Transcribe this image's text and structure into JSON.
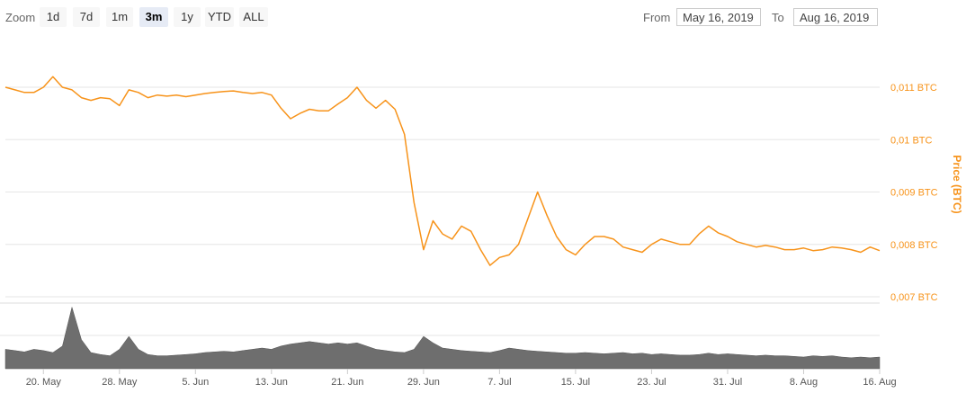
{
  "toolbar": {
    "zoom_label": "Zoom",
    "zoom_buttons": [
      {
        "label": "1d",
        "active": false
      },
      {
        "label": "7d",
        "active": false
      },
      {
        "label": "1m",
        "active": false
      },
      {
        "label": "3m",
        "active": true
      },
      {
        "label": "1y",
        "active": false
      },
      {
        "label": "YTD",
        "active": false
      },
      {
        "label": "ALL",
        "active": false
      }
    ],
    "from_label": "From",
    "from_value": "May 16, 2019",
    "to_label": "To",
    "to_value": "Aug 16, 2019"
  },
  "colors": {
    "price_line": "#f7931a",
    "volume_fill": "#6e6e6e",
    "grid": "#e6e6e6"
  },
  "chart_data": [
    {
      "type": "line",
      "ylabel": "Price (BTC)",
      "y_ticks": [
        "0,007 BTC",
        "0,008 BTC",
        "0,009 BTC",
        "0,01 BTC",
        "0,011 BTC"
      ],
      "ylim": [
        0.007,
        0.011
      ],
      "x_ticks": [
        "20. May",
        "28. May",
        "5. Jun",
        "13. Jun",
        "21. Jun",
        "29. Jun",
        "7. Jul",
        "15. Jul",
        "23. Jul",
        "31. Jul",
        "8. Aug",
        "16. Aug"
      ],
      "xlim": [
        "2019-05-16",
        "2019-08-16"
      ],
      "grid": true,
      "series": [
        {
          "x": [
            "2019-05-16",
            "2019-05-17",
            "2019-05-18",
            "2019-05-19",
            "2019-05-20",
            "2019-05-21",
            "2019-05-22",
            "2019-05-23",
            "2019-05-24",
            "2019-05-25",
            "2019-05-26",
            "2019-05-27",
            "2019-05-28",
            "2019-05-29",
            "2019-05-30",
            "2019-05-31",
            "2019-06-01",
            "2019-06-02",
            "2019-06-03",
            "2019-06-04",
            "2019-06-05",
            "2019-06-06",
            "2019-06-07",
            "2019-06-08",
            "2019-06-09",
            "2019-06-10",
            "2019-06-11",
            "2019-06-12",
            "2019-06-13",
            "2019-06-14",
            "2019-06-15",
            "2019-06-16",
            "2019-06-17",
            "2019-06-18",
            "2019-06-19",
            "2019-06-20",
            "2019-06-21",
            "2019-06-22",
            "2019-06-23",
            "2019-06-24",
            "2019-06-25",
            "2019-06-26",
            "2019-06-27",
            "2019-06-28",
            "2019-06-29",
            "2019-06-30",
            "2019-07-01",
            "2019-07-02",
            "2019-07-03",
            "2019-07-04",
            "2019-07-05",
            "2019-07-06",
            "2019-07-07",
            "2019-07-08",
            "2019-07-09",
            "2019-07-10",
            "2019-07-11",
            "2019-07-12",
            "2019-07-13",
            "2019-07-14",
            "2019-07-15",
            "2019-07-16",
            "2019-07-17",
            "2019-07-18",
            "2019-07-19",
            "2019-07-20",
            "2019-07-21",
            "2019-07-22",
            "2019-07-23",
            "2019-07-24",
            "2019-07-25",
            "2019-07-26",
            "2019-07-27",
            "2019-07-28",
            "2019-07-29",
            "2019-07-30",
            "2019-07-31",
            "2019-08-01",
            "2019-08-02",
            "2019-08-03",
            "2019-08-04",
            "2019-08-05",
            "2019-08-06",
            "2019-08-07",
            "2019-08-08",
            "2019-08-09",
            "2019-08-10",
            "2019-08-11",
            "2019-08-12",
            "2019-08-13",
            "2019-08-14",
            "2019-08-15",
            "2019-08-16"
          ],
          "values": [
            0.011,
            0.01095,
            0.0109,
            0.0109,
            0.011,
            0.0112,
            0.011,
            0.01095,
            0.0108,
            0.01075,
            0.0108,
            0.01078,
            0.01065,
            0.01095,
            0.0109,
            0.0108,
            0.01085,
            0.01083,
            0.01085,
            0.01082,
            0.01085,
            0.01088,
            0.0109,
            0.01092,
            0.01093,
            0.0109,
            0.01088,
            0.0109,
            0.01085,
            0.0106,
            0.0104,
            0.0105,
            0.01058,
            0.01055,
            0.01055,
            0.01068,
            0.0108,
            0.011,
            0.01075,
            0.0106,
            0.01075,
            0.01058,
            0.0101,
            0.0088,
            0.0079,
            0.00845,
            0.0082,
            0.0081,
            0.00835,
            0.00825,
            0.0079,
            0.0076,
            0.00775,
            0.0078,
            0.008,
            0.0085,
            0.009,
            0.00855,
            0.00815,
            0.0079,
            0.0078,
            0.008,
            0.00815,
            0.00815,
            0.0081,
            0.00795,
            0.0079,
            0.00785,
            0.008,
            0.0081,
            0.00805,
            0.008,
            0.008,
            0.0082,
            0.00835,
            0.00822,
            0.00815,
            0.00805,
            0.008,
            0.00795,
            0.00798,
            0.00795,
            0.0079,
            0.0079,
            0.00793,
            0.00788,
            0.0079,
            0.00795,
            0.00793,
            0.0079,
            0.00785,
            0.00795,
            0.00788
          ]
        }
      ]
    },
    {
      "type": "area",
      "name": "volume",
      "x_ticks": [
        "20. May",
        "28. May",
        "5. Jun",
        "13. Jun",
        "21. Jun",
        "29. Jun",
        "7. Jul",
        "15. Jul",
        "23. Jul",
        "31. Jul",
        "8. Aug",
        "16. Aug"
      ],
      "xlim": [
        "2019-05-16",
        "2019-08-16"
      ],
      "values": [
        0.3,
        0.28,
        0.26,
        0.3,
        0.28,
        0.25,
        0.35,
        0.95,
        0.45,
        0.25,
        0.22,
        0.2,
        0.3,
        0.5,
        0.3,
        0.22,
        0.2,
        0.2,
        0.21,
        0.22,
        0.23,
        0.25,
        0.26,
        0.27,
        0.26,
        0.28,
        0.3,
        0.32,
        0.3,
        0.35,
        0.38,
        0.4,
        0.42,
        0.4,
        0.38,
        0.4,
        0.38,
        0.4,
        0.35,
        0.3,
        0.28,
        0.26,
        0.25,
        0.3,
        0.5,
        0.4,
        0.32,
        0.3,
        0.28,
        0.27,
        0.26,
        0.25,
        0.28,
        0.32,
        0.3,
        0.28,
        0.27,
        0.26,
        0.25,
        0.24,
        0.24,
        0.25,
        0.24,
        0.23,
        0.24,
        0.25,
        0.23,
        0.24,
        0.22,
        0.23,
        0.22,
        0.21,
        0.21,
        0.22,
        0.24,
        0.22,
        0.23,
        0.22,
        0.21,
        0.2,
        0.21,
        0.2,
        0.2,
        0.19,
        0.18,
        0.2,
        0.19,
        0.2,
        0.18,
        0.17,
        0.18,
        0.17,
        0.18
      ]
    }
  ]
}
